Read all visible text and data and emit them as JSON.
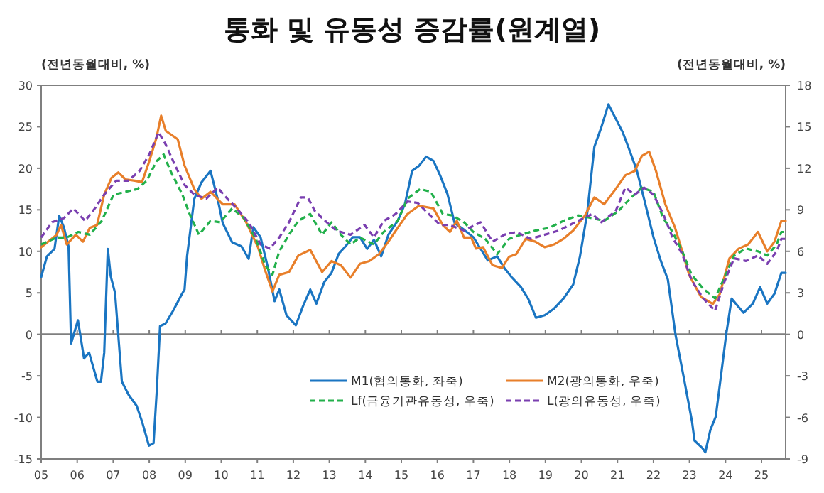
{
  "chart_data": {
    "type": "line",
    "title": "통화 및 유동성 증감률(원계열)",
    "ylabel": "(전년동월대비, %)",
    "y2label": "(전년동월대비, %)",
    "xlim": [
      2005,
      2025.67
    ],
    "xticks": [
      {
        "value": 2005,
        "label": "05"
      },
      {
        "value": 2006,
        "label": "06"
      },
      {
        "value": 2007,
        "label": "07"
      },
      {
        "value": 2008,
        "label": "08"
      },
      {
        "value": 2009,
        "label": "09"
      },
      {
        "value": 2010,
        "label": "10"
      },
      {
        "value": 2011,
        "label": "11"
      },
      {
        "value": 2012,
        "label": "12"
      },
      {
        "value": 2013,
        "label": "13"
      },
      {
        "value": 2014,
        "label": "14"
      },
      {
        "value": 2015,
        "label": "15"
      },
      {
        "value": 2016,
        "label": "16"
      },
      {
        "value": 2017,
        "label": "17"
      },
      {
        "value": 2018,
        "label": "18"
      },
      {
        "value": 2019,
        "label": "19"
      },
      {
        "value": 2020,
        "label": "20"
      },
      {
        "value": 2021,
        "label": "21"
      },
      {
        "value": 2022,
        "label": "22"
      },
      {
        "value": 2023,
        "label": "23"
      },
      {
        "value": 2024,
        "label": "24"
      },
      {
        "value": 2025,
        "label": "25"
      }
    ],
    "ylim": [
      -15,
      30
    ],
    "yticks": [
      -15,
      -10,
      -5,
      0,
      5,
      10,
      15,
      20,
      25,
      30
    ],
    "y2lim": [
      -9,
      18
    ],
    "y2ticks": [
      -9,
      -6,
      -3,
      0,
      3,
      6,
      9,
      12,
      15,
      18
    ],
    "grid": false,
    "legend": "bottom",
    "marker": "none",
    "ref_lines": [
      {
        "axis": "y",
        "value": 0,
        "color": "#7f7f7f"
      }
    ],
    "series": [
      {
        "name": "M1(협의통화, 좌축)",
        "color": "#1a75c2",
        "line_style": "solid",
        "x": [
          2005.0,
          2005.16,
          2005.37,
          2005.5,
          2005.63,
          2005.76,
          2005.83,
          2006.02,
          2006.19,
          2006.33,
          2006.56,
          2006.66,
          2006.75,
          2006.85,
          2006.93,
          2007.05,
          2007.24,
          2007.43,
          2007.65,
          2007.8,
          2007.99,
          2008.12,
          2008.21,
          2008.3,
          2008.45,
          2008.67,
          2008.9,
          2008.98,
          2009.05,
          2009.25,
          2009.45,
          2009.7,
          2009.9,
          2010.04,
          2010.3,
          2010.56,
          2010.76,
          2010.89,
          2011.09,
          2011.28,
          2011.48,
          2011.61,
          2011.81,
          2012.07,
          2012.27,
          2012.47,
          2012.64,
          2012.86,
          2013.06,
          2013.26,
          2013.45,
          2013.65,
          2013.85,
          2014.05,
          2014.24,
          2014.44,
          2014.64,
          2014.9,
          2015.1,
          2015.3,
          2015.49,
          2015.69,
          2015.89,
          2016.08,
          2016.28,
          2016.48,
          2016.74,
          2017.0,
          2017.2,
          2017.4,
          2017.66,
          2017.86,
          2018.06,
          2018.32,
          2018.52,
          2018.74,
          2018.98,
          2019.24,
          2019.5,
          2019.77,
          2019.96,
          2020.16,
          2020.36,
          2020.55,
          2020.75,
          2020.95,
          2021.15,
          2021.35,
          2021.54,
          2021.74,
          2022.0,
          2022.2,
          2022.4,
          2022.61,
          2022.85,
          2023.07,
          2023.14,
          2023.36,
          2023.44,
          2023.58,
          2023.73,
          2023.88,
          2024.02,
          2024.17,
          2024.5,
          2024.76,
          2024.96,
          2025.16,
          2025.36,
          2025.55,
          2025.67
        ],
        "values": [
          6.9,
          9.4,
          10.3,
          14.3,
          12.9,
          10.6,
          -1.1,
          1.7,
          -2.9,
          -2.2,
          -5.7,
          -5.7,
          -2.2,
          10.3,
          7,
          5,
          -5.7,
          -7.3,
          -8.6,
          -10.5,
          -13.4,
          -13.1,
          -6.7,
          1,
          1.3,
          2.9,
          4.8,
          5.4,
          9.4,
          16.3,
          18.3,
          19.7,
          16.3,
          13.4,
          11.1,
          10.6,
          9.1,
          12.9,
          11.7,
          8.3,
          4,
          5.4,
          2.3,
          1.1,
          3.4,
          5.4,
          3.7,
          6.3,
          7.4,
          9.7,
          10.6,
          11.7,
          11.7,
          10.3,
          11.4,
          9.4,
          12,
          13.7,
          15.7,
          19.7,
          20.3,
          21.4,
          20.9,
          19.1,
          16.9,
          13.4,
          12.6,
          11.7,
          10.3,
          8.9,
          9.4,
          8,
          6.9,
          5.7,
          4.3,
          2,
          2.3,
          3.1,
          4.3,
          6,
          9.4,
          14.6,
          22.6,
          24.9,
          27.7,
          26,
          24.3,
          22,
          19.7,
          16.3,
          11.7,
          8.9,
          6.6,
          0,
          -5.4,
          -10.5,
          -12.8,
          -13.7,
          -14.2,
          -11.5,
          -9.9,
          -4.8,
          0,
          4.3,
          2.6,
          3.7,
          5.7,
          3.7,
          4.9,
          7.4,
          7.4
        ]
      },
      {
        "name": "M2(광의통화, 우축)",
        "color": "#e87f2a",
        "line_style": "solid",
        "axis": "y2",
        "x": [
          2005.0,
          2005.43,
          2005.55,
          2005.71,
          2005.96,
          2006.16,
          2006.35,
          2006.55,
          2006.75,
          2006.95,
          2007.14,
          2007.34,
          2007.6,
          2007.8,
          2008.0,
          2008.2,
          2008.33,
          2008.46,
          2008.79,
          2008.98,
          2009.25,
          2009.45,
          2009.7,
          2010.04,
          2010.37,
          2010.69,
          2011.02,
          2011.22,
          2011.42,
          2011.61,
          2011.88,
          2012.14,
          2012.47,
          2012.8,
          2013.06,
          2013.32,
          2013.59,
          2013.85,
          2014.11,
          2014.38,
          2014.64,
          2014.9,
          2015.17,
          2015.49,
          2015.89,
          2016.15,
          2016.35,
          2016.54,
          2016.74,
          2016.94,
          2017.07,
          2017.27,
          2017.53,
          2017.79,
          2017.99,
          2018.19,
          2018.45,
          2018.72,
          2018.98,
          2019.24,
          2019.5,
          2019.77,
          2020.1,
          2020.36,
          2020.63,
          2020.95,
          2021.22,
          2021.48,
          2021.68,
          2021.88,
          2022.07,
          2022.33,
          2022.6,
          2022.8,
          2022.99,
          2023.32,
          2023.65,
          2023.84,
          2024.11,
          2024.37,
          2024.63,
          2024.9,
          2025.16,
          2025.36,
          2025.55,
          2025.67
        ],
        "values": [
          6.3,
          7.2,
          7.9,
          6.5,
          7.2,
          6.7,
          7.7,
          7.9,
          10.1,
          11.3,
          11.7,
          11.2,
          11.1,
          11,
          12.5,
          14.2,
          15.8,
          14.7,
          14.1,
          12.2,
          10.5,
          9.8,
          10.3,
          9.4,
          9.4,
          8.1,
          6.3,
          4.6,
          3.1,
          4.3,
          4.5,
          5.7,
          6.1,
          4.5,
          5.3,
          5,
          4.1,
          5.1,
          5.3,
          5.8,
          6.7,
          7.7,
          8.7,
          9.3,
          9.1,
          7.9,
          7.4,
          8.2,
          7,
          7,
          6.2,
          6.3,
          5,
          4.8,
          5.6,
          5.8,
          6.9,
          6.7,
          6.3,
          6.5,
          6.9,
          7.5,
          8.6,
          9.9,
          9.4,
          10.5,
          11.5,
          11.8,
          12.9,
          13.2,
          11.8,
          9.4,
          7.7,
          6,
          4.3,
          2.7,
          2.2,
          2.9,
          5.5,
          6.2,
          6.5,
          7.4,
          6,
          6.7,
          8.2,
          8.2
        ]
      },
      {
        "name": "Lf(금융기관유동성, 우축)",
        "color": "#22b04b",
        "line_style": "dashed",
        "axis": "y2",
        "x": [
          2005.0,
          2005.43,
          2005.71,
          2006.03,
          2006.35,
          2006.68,
          2007.01,
          2007.34,
          2007.67,
          2007.93,
          2008.2,
          2008.4,
          2008.59,
          2008.92,
          2009.12,
          2009.38,
          2009.7,
          2009.97,
          2010.3,
          2010.63,
          2010.96,
          2011.22,
          2011.42,
          2011.61,
          2011.88,
          2012.14,
          2012.47,
          2012.8,
          2013.06,
          2013.32,
          2013.59,
          2013.85,
          2014.24,
          2014.51,
          2014.9,
          2015.17,
          2015.52,
          2015.82,
          2016.15,
          2016.41,
          2016.74,
          2017.0,
          2017.33,
          2017.66,
          2017.99,
          2018.32,
          2018.72,
          2019.11,
          2019.5,
          2019.9,
          2020.3,
          2020.63,
          2021.02,
          2021.35,
          2021.68,
          2022.0,
          2022.27,
          2022.53,
          2022.8,
          2023.06,
          2023.38,
          2023.71,
          2023.97,
          2024.24,
          2024.57,
          2024.9,
          2025.16,
          2025.42,
          2025.55,
          2025.67
        ],
        "values": [
          6.5,
          7,
          7,
          7.4,
          7.2,
          8.2,
          10.1,
          10.3,
          10.5,
          11.1,
          12.5,
          13,
          11.8,
          10.1,
          8.7,
          7.2,
          8.2,
          8.1,
          9.1,
          8.4,
          6.9,
          5,
          4.3,
          6,
          7.2,
          8.2,
          8.7,
          7.2,
          8.1,
          7.2,
          6.5,
          7,
          6.5,
          7.4,
          8.2,
          9.8,
          10.5,
          10.3,
          8.7,
          8.6,
          8.1,
          7.4,
          6.9,
          5.8,
          6.9,
          7.2,
          7.5,
          7.7,
          8.2,
          8.6,
          8.4,
          8.2,
          8.9,
          9.8,
          10.6,
          10.3,
          8.4,
          7.4,
          6,
          4.3,
          3.3,
          2.6,
          4.1,
          5.7,
          6.2,
          6,
          5.7,
          6.5,
          7.4,
          7.4
        ]
      },
      {
        "name": "L(광의유동성, 우축)",
        "color": "#7a3fb0",
        "line_style": "dashed",
        "axis": "y2",
        "x": [
          2005.0,
          2005.3,
          2005.63,
          2005.89,
          2006.22,
          2006.49,
          2006.75,
          2007.08,
          2007.41,
          2007.73,
          2008.0,
          2008.26,
          2008.46,
          2008.72,
          2008.98,
          2009.25,
          2009.58,
          2009.9,
          2010.17,
          2010.43,
          2010.76,
          2011.09,
          2011.35,
          2011.61,
          2011.88,
          2012.21,
          2012.4,
          2012.6,
          2012.93,
          2013.19,
          2013.59,
          2013.98,
          2014.24,
          2014.51,
          2014.84,
          2015.17,
          2015.45,
          2015.76,
          2016.08,
          2016.35,
          2016.74,
          2017.2,
          2017.53,
          2017.86,
          2018.19,
          2018.59,
          2018.98,
          2019.37,
          2019.9,
          2020.3,
          2020.55,
          2020.95,
          2021.22,
          2021.48,
          2021.74,
          2022.0,
          2022.27,
          2022.53,
          2022.8,
          2023.06,
          2023.38,
          2023.71,
          2023.97,
          2024.24,
          2024.57,
          2024.9,
          2025.16,
          2025.42,
          2025.55,
          2025.67
        ],
        "values": [
          7,
          8.1,
          8.4,
          9.1,
          8.2,
          9.1,
          10.1,
          11.1,
          11.1,
          11.8,
          13,
          14.6,
          13.7,
          12.2,
          10.8,
          10.1,
          9.8,
          10.6,
          9.8,
          9.1,
          8.1,
          6.5,
          6.2,
          7,
          8.1,
          9.9,
          9.9,
          8.9,
          8.1,
          7.5,
          7.2,
          7.9,
          7,
          8.2,
          8.7,
          9.6,
          9.5,
          8.7,
          7.9,
          7.9,
          7.5,
          8.1,
          6.7,
          7.2,
          7.4,
          6.9,
          7.2,
          7.5,
          8.2,
          8.7,
          8.1,
          8.9,
          10.6,
          10.1,
          10.6,
          10.1,
          8.7,
          7,
          5.8,
          3.9,
          2.6,
          1.7,
          3.8,
          5.5,
          5.3,
          5.7,
          5.1,
          6,
          6.9,
          6.9
        ]
      }
    ]
  }
}
